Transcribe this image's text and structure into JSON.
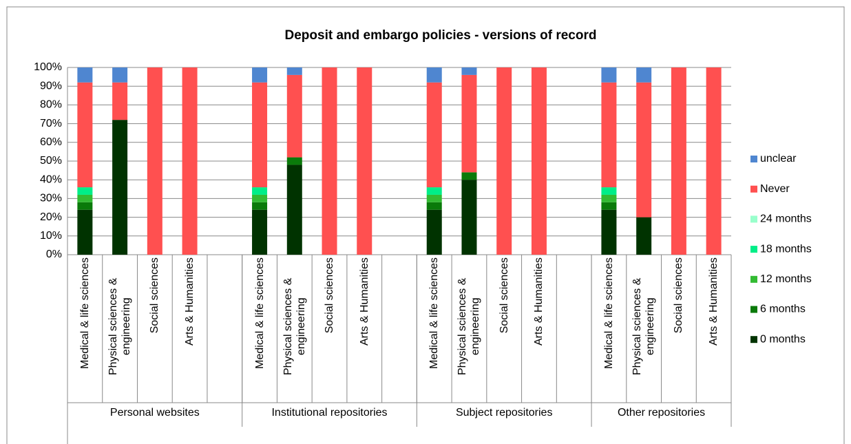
{
  "chart_data": {
    "type": "stacked-bar",
    "title": "Deposit and embargo policies - versions of record",
    "categories": [
      "Medical & life sciences",
      "Physical sciences & engineering",
      "Social sciences",
      "Arts & Humanities",
      null,
      "Medical & life sciences",
      "Physical sciences & engineering",
      "Social sciences",
      "Arts & Humanities",
      null,
      "Medical & life sciences",
      "Physical sciences & engineering",
      "Social sciences",
      "Arts & Humanities",
      null,
      "Medical & life sciences",
      "Physical sciences & engineering",
      "Social sciences",
      "Arts & Humanities"
    ],
    "groups": [
      "Personal websites",
      "Institutional repositories",
      "Subject repositories",
      "Other repositories"
    ],
    "series": [
      {
        "name": "0 months",
        "color": "#003300",
        "values": [
          24,
          72,
          0,
          0,
          null,
          24,
          48,
          0,
          0,
          null,
          24,
          40,
          0,
          0,
          null,
          24,
          20,
          0,
          0
        ]
      },
      {
        "name": "6 months",
        "color": "#0a7a0a",
        "values": [
          4,
          0,
          0,
          0,
          null,
          4,
          4,
          0,
          0,
          null,
          4,
          4,
          0,
          0,
          null,
          4,
          0,
          0,
          0
        ]
      },
      {
        "name": "12 months",
        "color": "#33bb33",
        "values": [
          4,
          0,
          0,
          0,
          null,
          4,
          0,
          0,
          0,
          null,
          4,
          0,
          0,
          0,
          null,
          4,
          0,
          0,
          0
        ]
      },
      {
        "name": "18 months",
        "color": "#00ee88",
        "values": [
          4,
          0,
          0,
          0,
          null,
          4,
          0,
          0,
          0,
          null,
          4,
          0,
          0,
          0,
          null,
          4,
          0,
          0,
          0
        ]
      },
      {
        "name": "24 months",
        "color": "#99ffcc",
        "values": [
          0,
          0,
          0,
          0,
          null,
          0,
          0,
          0,
          0,
          null,
          0,
          0,
          0,
          0,
          null,
          0,
          0,
          0,
          0
        ]
      },
      {
        "name": "Never",
        "color": "#ff5050",
        "values": [
          56,
          20,
          100,
          100,
          null,
          56,
          44,
          100,
          100,
          null,
          56,
          52,
          100,
          100,
          null,
          56,
          72,
          100,
          100
        ]
      },
      {
        "name": "unclear",
        "color": "#4f86d0",
        "values": [
          8,
          8,
          0,
          0,
          null,
          8,
          4,
          0,
          0,
          null,
          8,
          4,
          0,
          0,
          null,
          8,
          8,
          0,
          0
        ]
      }
    ],
    "ylim": [
      0,
      100
    ],
    "yticks": [
      {
        "value": 0,
        "label": "0%"
      },
      {
        "value": 10,
        "label": "10%"
      },
      {
        "value": 20,
        "label": "20%"
      },
      {
        "value": 30,
        "label": "30%"
      },
      {
        "value": 40,
        "label": "40%"
      },
      {
        "value": 50,
        "label": "50%"
      },
      {
        "value": 60,
        "label": "60%"
      },
      {
        "value": 70,
        "label": "70%"
      },
      {
        "value": 80,
        "label": "80%"
      },
      {
        "value": 90,
        "label": "90%"
      },
      {
        "value": 100,
        "label": "100%"
      }
    ],
    "grid": true,
    "legend": "right"
  }
}
